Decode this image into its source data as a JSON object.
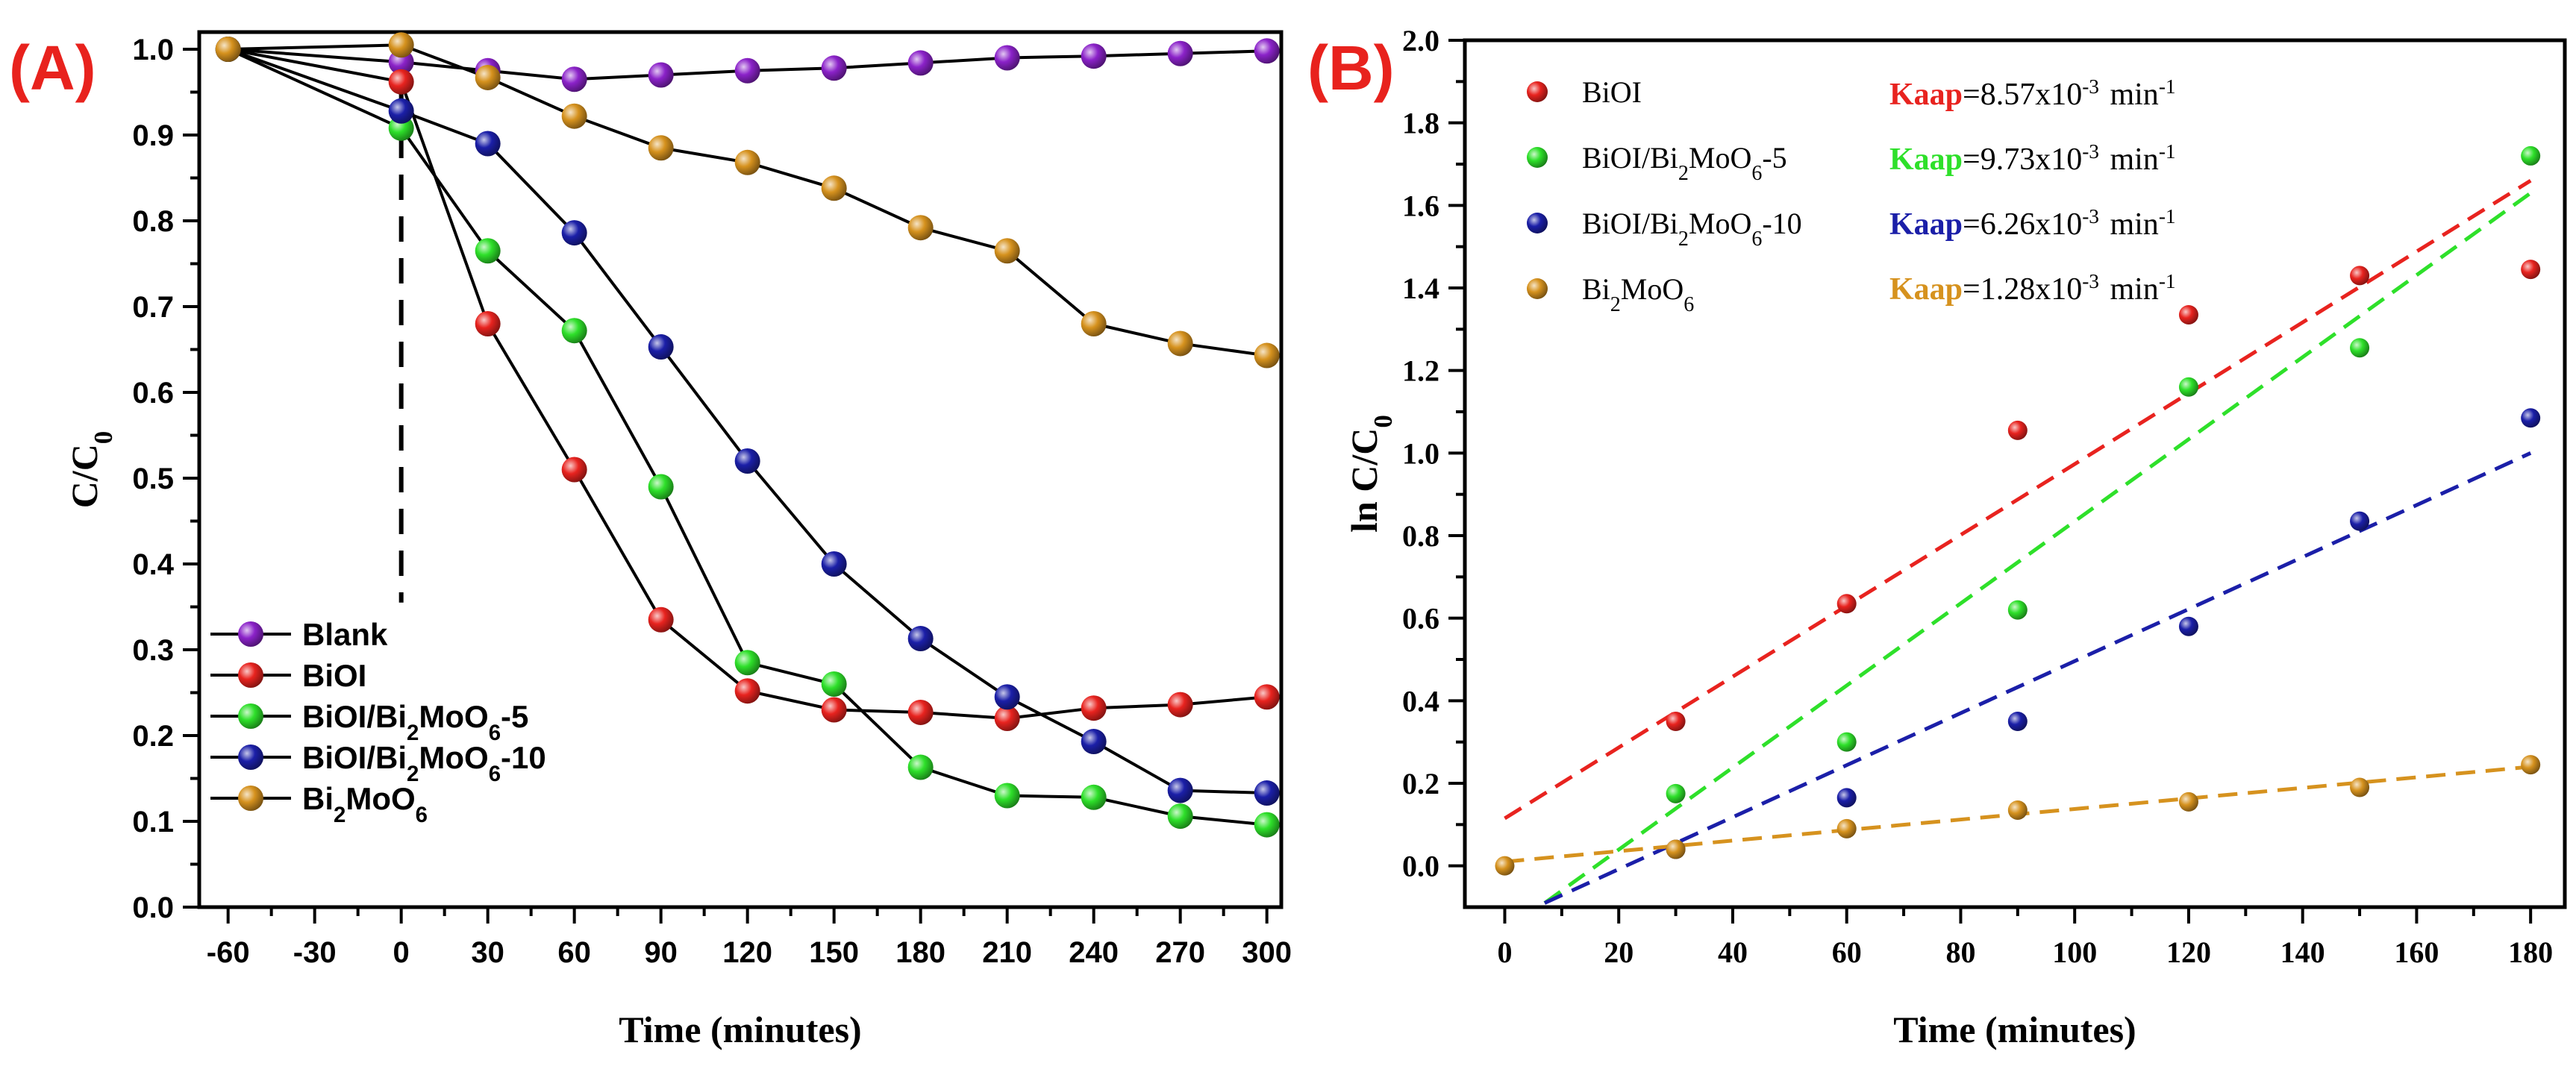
{
  "chart_data": [
    {
      "id": "A",
      "type": "line",
      "panel_label": "(A)",
      "xlabel": "Time (minutes)",
      "ylabel": "C/C",
      "ylabel_sub": "0",
      "xlim": [
        -70,
        305
      ],
      "ylim": [
        0,
        1.02
      ],
      "xticks": [
        -60,
        -30,
        0,
        30,
        60,
        90,
        120,
        150,
        180,
        210,
        240,
        270,
        300
      ],
      "yticks": [
        0.0,
        0.1,
        0.2,
        0.3,
        0.4,
        0.5,
        0.6,
        0.7,
        0.8,
        0.9,
        1.0
      ],
      "ytick_labels": [
        "0.0",
        "0.1",
        "0.2",
        "0.3",
        "0.4",
        "0.5",
        "0.6",
        "0.7",
        "0.8",
        "0.9",
        "1.0"
      ],
      "x": [
        -60,
        0,
        30,
        60,
        90,
        120,
        150,
        180,
        210,
        240,
        270,
        300
      ],
      "reference_line_x": 0,
      "legend_position": "bottom-left",
      "series": [
        {
          "name": "Blank",
          "color": "#8b22c9",
          "values": [
            1.0,
            0.985,
            0.975,
            0.965,
            0.97,
            0.975,
            0.978,
            0.984,
            0.99,
            0.992,
            0.995,
            0.998
          ]
        },
        {
          "name": "BiOI",
          "color": "#e8231f",
          "values": [
            1.0,
            0.962,
            0.68,
            0.51,
            0.335,
            0.252,
            0.23,
            0.227,
            0.22,
            0.232,
            0.236,
            0.245
          ]
        },
        {
          "name": "BiOI/Bi2MoO6-5",
          "color": "#2ee02a",
          "values": [
            1.0,
            0.908,
            0.765,
            0.672,
            0.49,
            0.285,
            0.26,
            0.163,
            0.13,
            0.128,
            0.106,
            0.096
          ]
        },
        {
          "name": "BiOI/Bi2MoO6-10",
          "color": "#1b1fa8",
          "values": [
            1.0,
            0.928,
            0.89,
            0.786,
            0.653,
            0.52,
            0.4,
            0.313,
            0.245,
            0.193,
            0.136,
            0.133
          ]
        },
        {
          "name": "Bi2MoO6",
          "color": "#d6921e",
          "values": [
            1.0,
            1.005,
            0.967,
            0.922,
            0.885,
            0.868,
            0.838,
            0.792,
            0.765,
            0.68,
            0.657,
            0.643
          ]
        }
      ],
      "legend": [
        {
          "label": "Blank",
          "color": "#8b22c9",
          "sub": "",
          "tail": ""
        },
        {
          "label": "BiOI",
          "color": "#e8231f",
          "sub": "",
          "tail": ""
        },
        {
          "label": "BiOI/Bi",
          "color": "#2ee02a",
          "sub": "2",
          "tail": "MoO",
          "sub2": "6",
          "tail2": "-5"
        },
        {
          "label": "BiOI/Bi",
          "color": "#1b1fa8",
          "sub": "2",
          "tail": "MoO",
          "sub2": "6",
          "tail2": "-10"
        },
        {
          "label": "Bi",
          "color": "#d6921e",
          "sub": "2",
          "tail": "MoO",
          "sub2": "6",
          "tail2": ""
        }
      ]
    },
    {
      "id": "B",
      "type": "scatter",
      "panel_label": "(B)",
      "xlabel": "Time (minutes)",
      "ylabel": "ln C/C",
      "ylabel_sub": "0",
      "xlim": [
        -7,
        186
      ],
      "ylim": [
        -0.1,
        2.0
      ],
      "xticks": [
        0,
        20,
        40,
        60,
        80,
        100,
        120,
        140,
        160,
        180
      ],
      "yticks": [
        0.0,
        0.2,
        0.4,
        0.6,
        0.8,
        1.0,
        1.2,
        1.4,
        1.6,
        1.8,
        2.0
      ],
      "ytick_labels": [
        "0.0",
        "0.2",
        "0.4",
        "0.6",
        "0.8",
        "1.0",
        "1.2",
        "1.4",
        "1.6",
        "1.8",
        "2.0"
      ],
      "legend_position": "top-left",
      "series": [
        {
          "name": "BiOI",
          "color": "#e8231f",
          "x": [
            30,
            60,
            90,
            120,
            150,
            180
          ],
          "y": [
            0.35,
            0.635,
            1.055,
            1.335,
            1.43,
            1.445
          ],
          "fit": [
            [
              0,
              0.115
            ],
            [
              180,
              1.66
            ]
          ]
        },
        {
          "name": "BiOI/Bi2MoO6-5",
          "color": "#2ee02a",
          "x": [
            30,
            60,
            90,
            120,
            150,
            180
          ],
          "y": [
            0.175,
            0.3,
            0.62,
            1.16,
            1.255,
            1.72
          ],
          "fit": [
            [
              7,
              -0.09
            ],
            [
              180,
              1.63
            ]
          ]
        },
        {
          "name": "BiOI/Bi2MoO6-10",
          "color": "#1b1fa8",
          "x": [
            30,
            60,
            90,
            120,
            150,
            180
          ],
          "y": [
            0.04,
            0.165,
            0.35,
            0.58,
            0.835,
            1.085
          ],
          "fit": [
            [
              7,
              -0.09
            ],
            [
              180,
              1.0
            ]
          ]
        },
        {
          "name": "Bi2MoO6",
          "color": "#d6921e",
          "x": [
            0,
            30,
            60,
            90,
            120,
            150,
            180
          ],
          "y": [
            0.0,
            0.04,
            0.09,
            0.135,
            0.155,
            0.19,
            0.245
          ],
          "fit": [
            [
              0,
              0.01
            ],
            [
              180,
              0.24
            ]
          ]
        }
      ],
      "legend": [
        {
          "label": "BiOI",
          "color": "#e8231f",
          "sub": "",
          "tail": "",
          "sub2": "",
          "tail2": ""
        },
        {
          "label": "BiOI/Bi",
          "color": "#2ee02a",
          "sub": "2",
          "tail": "MoO",
          "sub2": "6",
          "tail2": "-5"
        },
        {
          "label": "BiOI/Bi",
          "color": "#1b1fa8",
          "sub": "2",
          "tail": "MoO",
          "sub2": "6",
          "tail2": "-10"
        },
        {
          "label": "Bi",
          "color": "#d6921e",
          "sub": "2",
          "tail": "MoO",
          "sub2": "6",
          "tail2": ""
        }
      ],
      "annotations": [
        {
          "key": "Kaap",
          "color": "#e8231f",
          "value": "=8.57x10",
          "exp": "-3",
          "unit": " min",
          "unit_exp": "-1"
        },
        {
          "key": "Kaap",
          "color": "#2ee02a",
          "value": "=9.73x10",
          "exp": "-3",
          "unit": " min",
          "unit_exp": "-1"
        },
        {
          "key": "Kaap",
          "color": "#1b1fa8",
          "value": "=6.26x10",
          "exp": "-3",
          "unit": " min",
          "unit_exp": "-1"
        },
        {
          "key": "Kaap",
          "color": "#d6921e",
          "value": "=1.28x10",
          "exp": "-3",
          "unit": " min",
          "unit_exp": "-1"
        }
      ]
    }
  ]
}
